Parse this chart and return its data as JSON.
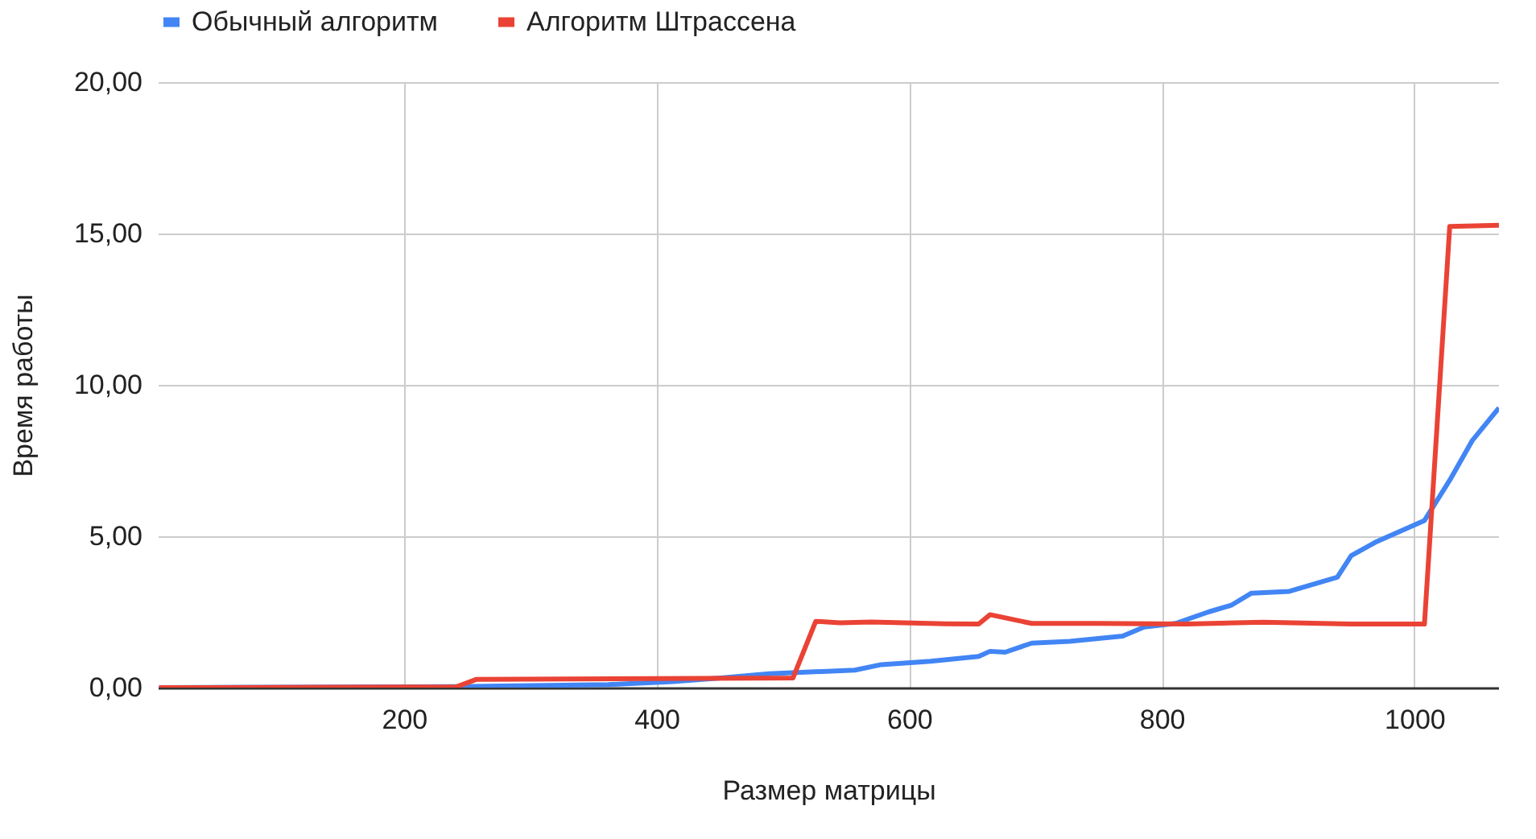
{
  "chart_data": {
    "type": "line",
    "xlabel": "Размер матрицы",
    "ylabel": "Время работы",
    "xlim": [
      5,
      1067
    ],
    "xticks": [
      200,
      400,
      600,
      800,
      1000
    ],
    "ylim": [
      0,
      20
    ],
    "yticks": [
      {
        "value": 0,
        "label": "0,00"
      },
      {
        "value": 5,
        "label": "5,00"
      },
      {
        "value": 10,
        "label": "10,00"
      },
      {
        "value": 15,
        "label": "15,00"
      },
      {
        "value": 20,
        "label": "20,00"
      }
    ],
    "grid": true,
    "legend": "top",
    "marker": "none",
    "line_style": "solid",
    "series": [
      {
        "name": "Обычный алгоритм",
        "color": "#4285f4",
        "x": [
          6,
          241,
          362,
          413,
          451,
          489,
          557,
          578,
          617,
          655,
          664,
          676,
          697,
          727,
          769,
          786,
          811,
          837,
          855,
          871,
          901,
          939,
          950,
          969,
          1008,
          1028,
          1046,
          1067
        ],
        "values": [
          0,
          0.03,
          0.1,
          0.2,
          0.32,
          0.46,
          0.58,
          0.76,
          0.87,
          1.03,
          1.2,
          1.17,
          1.47,
          1.53,
          1.7,
          2.0,
          2.12,
          2.5,
          2.72,
          3.12,
          3.18,
          3.65,
          4.36,
          4.8,
          5.52,
          6.85,
          8.17,
          9.24
        ]
      },
      {
        "name": "Алгоритм Штрассена",
        "color": "#ea4335",
        "x": [
          6,
          241,
          257,
          508,
          526,
          545,
          570,
          629,
          655,
          664,
          697,
          750,
          820,
          880,
          950,
          1008,
          1028,
          1067
        ],
        "values": [
          0,
          0.02,
          0.27,
          0.32,
          2.19,
          2.14,
          2.17,
          2.11,
          2.1,
          2.41,
          2.12,
          2.12,
          2.1,
          2.16,
          2.1,
          2.1,
          15.23,
          15.27
        ]
      }
    ]
  }
}
